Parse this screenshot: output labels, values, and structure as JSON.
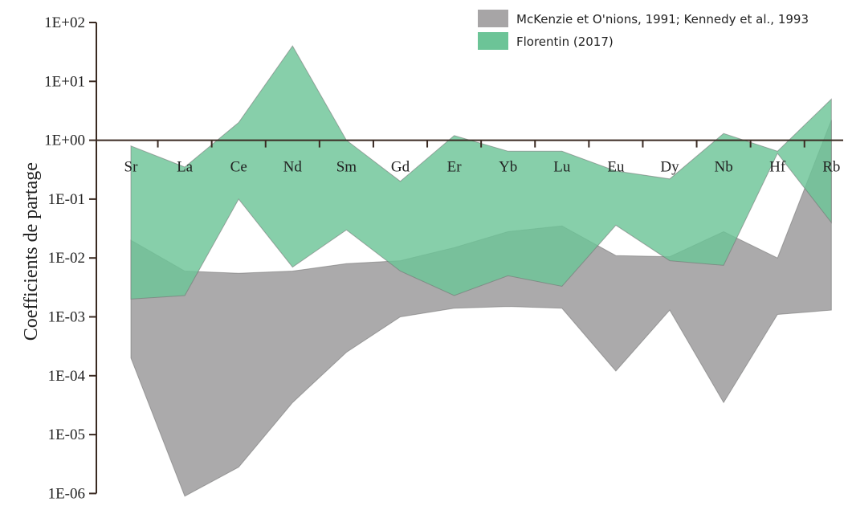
{
  "chart_data": {
    "type": "area",
    "title": "",
    "xlabel": "",
    "ylabel": "Coefficients de partage",
    "yscale": "log",
    "ylim": [
      1e-06,
      100
    ],
    "yticks": [
      {
        "value": 100,
        "label": "1E+02"
      },
      {
        "value": 10,
        "label": "1E+01"
      },
      {
        "value": 1,
        "label": "1E+00"
      },
      {
        "value": 0.1,
        "label": "1E-01"
      },
      {
        "value": 0.01,
        "label": "1E-02"
      },
      {
        "value": 0.001,
        "label": "1E-03"
      },
      {
        "value": 0.0001,
        "label": "1E-04"
      },
      {
        "value": 1e-05,
        "label": "1E-05"
      },
      {
        "value": 1e-06,
        "label": "1E-06"
      }
    ],
    "categories": [
      "Sr",
      "La",
      "Ce",
      "Nd",
      "Sm",
      "Gd",
      "Er",
      "Yb",
      "Lu",
      "Eu",
      "Dy",
      "Nb",
      "Hf",
      "Rb"
    ],
    "reference_line": 1,
    "legend_position": "top-right",
    "series": [
      {
        "name": "McKenzie et O'nions, 1991; Kennedy et al., 1993",
        "color": "#a7a5a6",
        "upper": [
          0.02,
          0.006,
          0.0055,
          0.006,
          0.008,
          0.009,
          0.015,
          0.028,
          0.035,
          0.011,
          0.0105,
          0.028,
          0.01,
          2.2
        ],
        "lower": [
          0.0002,
          9e-07,
          2.8e-06,
          3.5e-05,
          0.00025,
          0.001,
          0.0014,
          0.0015,
          0.0014,
          0.00012,
          0.0013,
          3.5e-05,
          0.0011,
          0.0013
        ]
      },
      {
        "name": "Florentin (2017)",
        "color": "#6cc497",
        "upper": [
          0.8,
          0.35,
          2,
          40,
          1,
          0.2,
          1.2,
          0.65,
          0.65,
          0.3,
          0.22,
          1.3,
          0.65,
          5
        ],
        "lower": [
          0.002,
          0.0023,
          0.1,
          0.007,
          0.03,
          0.006,
          0.0023,
          0.005,
          0.0033,
          0.036,
          0.009,
          0.0075,
          0.6,
          0.04
        ]
      }
    ]
  }
}
